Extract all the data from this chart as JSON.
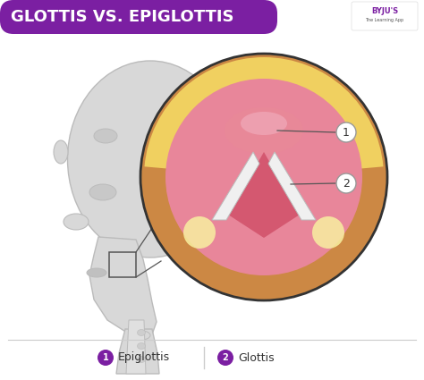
{
  "title": "GLOTTIS VS. EPIGLOTTIS",
  "title_bg_color": "#7B1FA2",
  "title_text_color": "#FFFFFF",
  "bg_color": "#FFFFFF",
  "label1": "Epiglottis",
  "label2": "Glottis",
  "legend_circle_color": "#7B1FA2",
  "legend_text_color": "#333333",
  "head_color": "#D8D8D8",
  "head_stroke": "#BBBBBB",
  "outer_ring_color": "#CC8844",
  "inner_pink_color": "#E8869A",
  "yellow_band": "#F0D060",
  "annotation_line_color": "#555555"
}
